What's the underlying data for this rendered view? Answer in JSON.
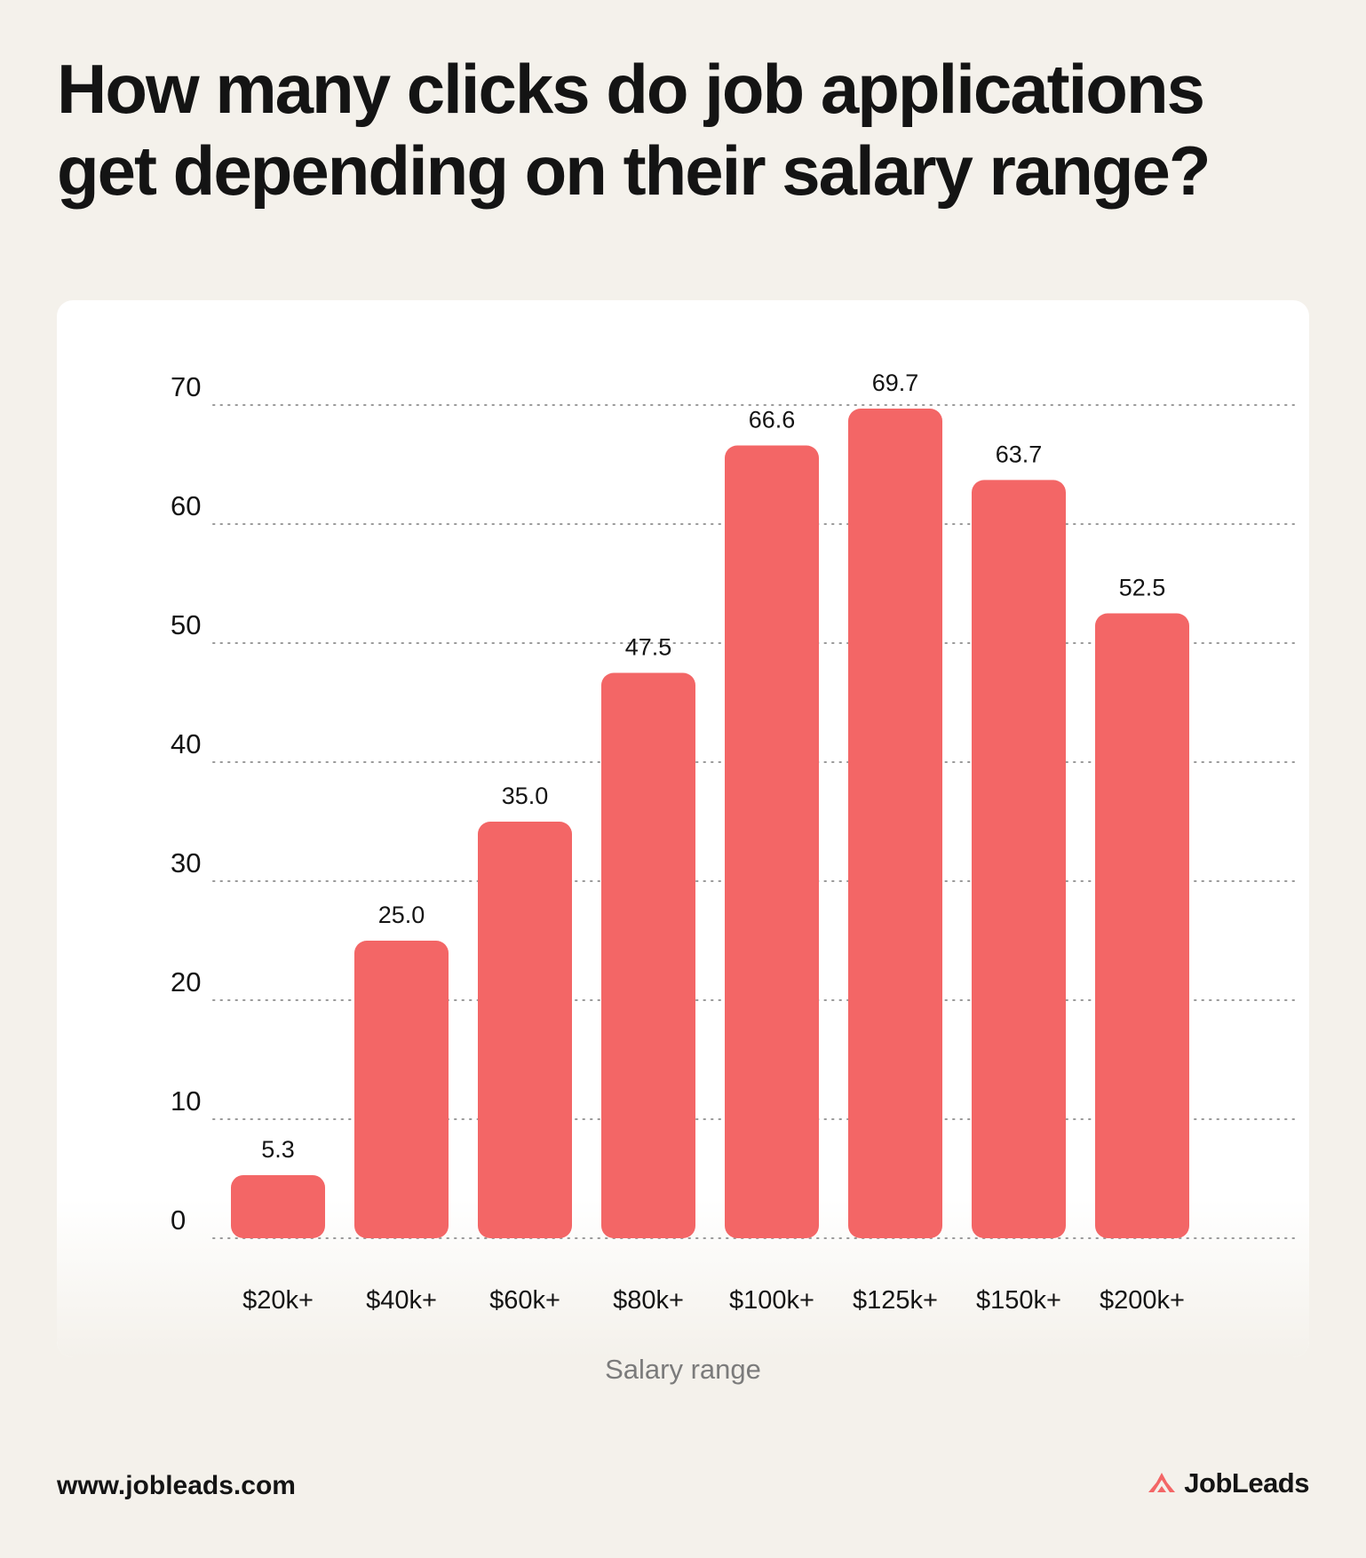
{
  "title": "How many clicks do job applications get depending on their salary range?",
  "footer": {
    "url": "www.jobleads.com",
    "brand": "JobLeads"
  },
  "colors": {
    "bar": "#f36666",
    "background": "#f4f1eb",
    "card": "#ffffff",
    "text": "#141414",
    "axis_label": "#7b7b7b",
    "grid": "#9a9a9a"
  },
  "chart_data": {
    "type": "bar",
    "categories": [
      "$20k+",
      "$40k+",
      "$60k+",
      "$80k+",
      "$100k+",
      "$125k+",
      "$150k+",
      "$200k+"
    ],
    "values": [
      5.3,
      25.0,
      35.0,
      47.5,
      66.6,
      69.7,
      63.7,
      52.5
    ],
    "data_labels": [
      "5.3",
      "25.0",
      "35.0",
      "47.5",
      "66.6",
      "69.7",
      "63.7",
      "52.5"
    ],
    "xlabel": "Salary range",
    "ylabel": "",
    "ylim": [
      0,
      70
    ],
    "yticks": [
      0,
      10,
      20,
      30,
      40,
      50,
      60,
      70
    ],
    "grid": true,
    "legend": "none"
  }
}
